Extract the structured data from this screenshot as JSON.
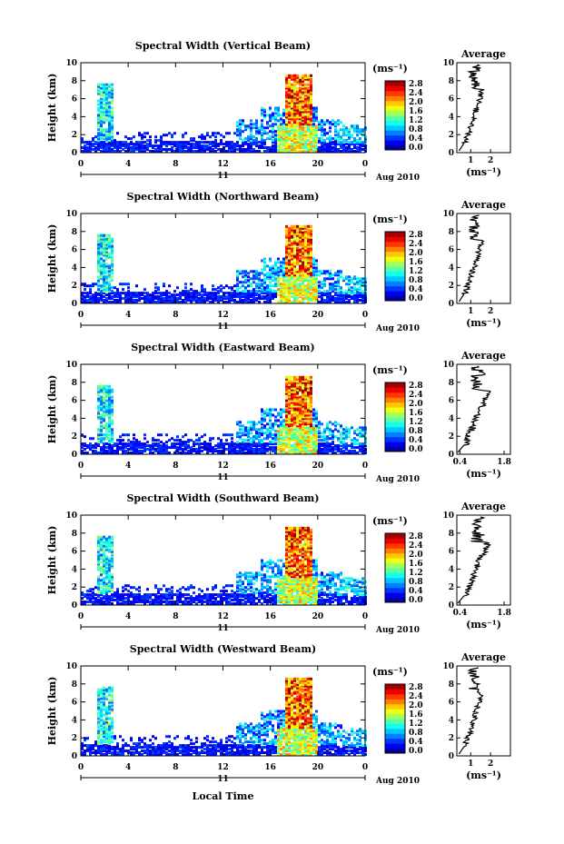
{
  "chart_data": [
    {
      "type": "heatmap",
      "title": "Spectral Width (Vertical Beam)",
      "ylabel": "Height (km)",
      "ylim": [
        0,
        10
      ],
      "x_ticks": [
        "0",
        "4",
        "8",
        "12",
        "16",
        "20",
        "0"
      ],
      "date_center": "11",
      "date_right": "Aug 2010",
      "colorbar": {
        "unit": "(ms⁻¹)",
        "ticks": [
          "2.8",
          "2.4",
          "2.0",
          "1.6",
          "1.2",
          "0.8",
          "0.4",
          "0.0"
        ],
        "max": 2.8
      },
      "profile": {
        "title": "Average",
        "xlabel": "(ms⁻¹)",
        "x_ticks": [
          "1",
          "2"
        ],
        "xlim": [
          0.3,
          3.0
        ]
      }
    },
    {
      "type": "heatmap",
      "title": "Spectral Width (Northward Beam)",
      "ylabel": "Height (km)",
      "ylim": [
        0,
        10
      ],
      "x_ticks": [
        "0",
        "4",
        "8",
        "12",
        "16",
        "20",
        "0"
      ],
      "date_center": "11",
      "date_right": "Aug 2010",
      "colorbar": {
        "unit": "(ms⁻¹)",
        "ticks": [
          "2.8",
          "2.4",
          "2.0",
          "1.6",
          "1.2",
          "0.8",
          "0.4",
          "0.0"
        ],
        "max": 2.8
      },
      "profile": {
        "title": "Average",
        "xlabel": "(ms⁻¹)",
        "x_ticks": [
          "1",
          "2"
        ],
        "xlim": [
          0.3,
          3.0
        ]
      }
    },
    {
      "type": "heatmap",
      "title": "Spectral Width (Eastward Beam)",
      "ylabel": "Height (km)",
      "ylim": [
        0,
        10
      ],
      "x_ticks": [
        "0",
        "4",
        "8",
        "12",
        "16",
        "20",
        "0"
      ],
      "date_center": "11",
      "date_right": "Aug 2010",
      "colorbar": {
        "unit": "(ms⁻¹)",
        "ticks": [
          "2.8",
          "2.4",
          "2.0",
          "1.6",
          "1.2",
          "0.8",
          "0.4",
          "0.0"
        ],
        "max": 2.8
      },
      "profile": {
        "title": "Average",
        "xlabel": "(ms⁻¹)",
        "x_ticks": [
          "0.4",
          "1.8"
        ],
        "xlim": [
          0.3,
          2.0
        ]
      }
    },
    {
      "type": "heatmap",
      "title": "Spectral Width (Southward Beam)",
      "ylabel": "Height (km)",
      "ylim": [
        0,
        10
      ],
      "x_ticks": [
        "0",
        "4",
        "8",
        "12",
        "16",
        "20",
        "0"
      ],
      "date_center": "11",
      "date_right": "Aug 2010",
      "colorbar": {
        "unit": "(ms⁻¹)",
        "ticks": [
          "2.8",
          "2.4",
          "2.0",
          "1.6",
          "1.2",
          "0.8",
          "0.4",
          "0.0"
        ],
        "max": 2.8
      },
      "profile": {
        "title": "Average",
        "xlabel": "(ms⁻¹)",
        "x_ticks": [
          "0.4",
          "1.8"
        ],
        "xlim": [
          0.3,
          2.0
        ]
      }
    },
    {
      "type": "heatmap",
      "title": "Spectral Width (Westward Beam)",
      "ylabel": "Height (km)",
      "ylim": [
        0,
        10
      ],
      "x_ticks": [
        "0",
        "4",
        "8",
        "12",
        "16",
        "20",
        "0"
      ],
      "date_center": "11",
      "date_right": "Aug 2010",
      "colorbar": {
        "unit": "(ms⁻¹)",
        "ticks": [
          "2.8",
          "2.4",
          "2.0",
          "1.6",
          "1.2",
          "0.8",
          "0.4",
          "0.0"
        ],
        "max": 2.8
      },
      "profile": {
        "title": "Average",
        "xlabel": "(ms⁻¹)",
        "x_ticks": [
          "1",
          "2"
        ],
        "xlim": [
          0.3,
          3.0
        ]
      }
    }
  ],
  "shared": {
    "xlabel": "Local Time",
    "x_hours": [
      0,
      4,
      8,
      12,
      16,
      20,
      24
    ]
  }
}
